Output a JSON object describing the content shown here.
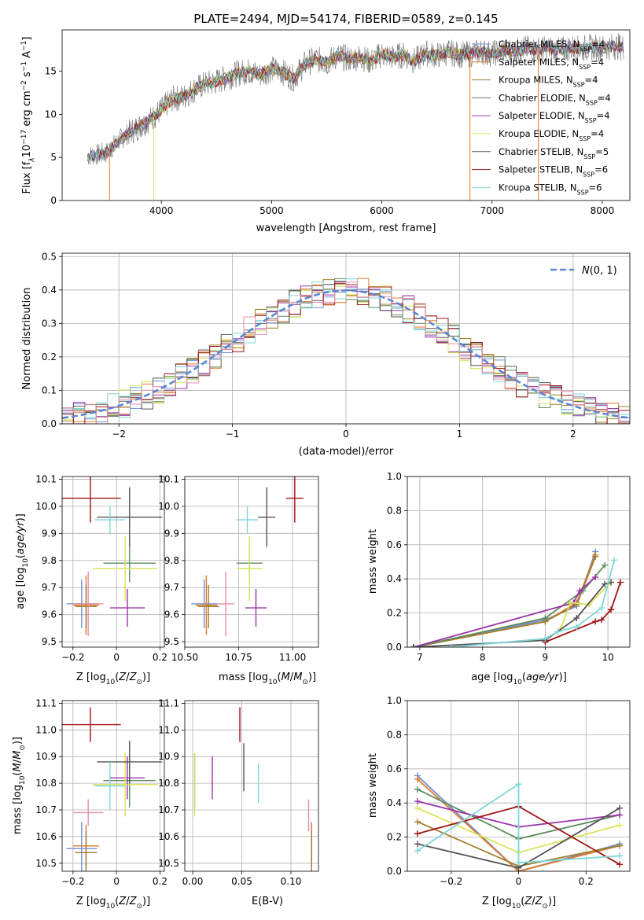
{
  "title": "PLATE=2494, MJD=54174, FIBERID=0589, z=0.145",
  "colors": [
    "#6f8fd4",
    "#e07a2a",
    "#a07f2c",
    "#5e8b5e",
    "#9b33a8",
    "#d9e35a",
    "#555555",
    "#a01414",
    "#7fd6d8",
    "#e58fa6"
  ],
  "models": [
    {
      "label": "Chabrier MILES, N",
      "sub": "SSP",
      "suffix": "=4",
      "color": "#6f8fd4"
    },
    {
      "label": "Salpeter MILES, N",
      "sub": "SSP",
      "suffix": "=4",
      "color": "#e07a2a"
    },
    {
      "label": "Kroupa MILES, N",
      "sub": "SSP",
      "suffix": "=4",
      "color": "#a07f2c"
    },
    {
      "label": "Chabrier ELODIE, N",
      "sub": "SSP",
      "suffix": "=4",
      "color": "#5e8b5e"
    },
    {
      "label": "Salpeter ELODIE, N",
      "sub": "SSP",
      "suffix": "=4",
      "color": "#9b33a8"
    },
    {
      "label": "Kroupa ELODIE, N",
      "sub": "SSP",
      "suffix": "=4",
      "color": "#d9e35a"
    },
    {
      "label": "Chabrier STELIB, N",
      "sub": "SSP",
      "suffix": "=5",
      "color": "#555555"
    },
    {
      "label": "Salpeter STELIB, N",
      "sub": "SSP",
      "suffix": "=6",
      "color": "#a01414"
    },
    {
      "label": "Kroupa STELIB, N",
      "sub": "SSP",
      "suffix": "=6",
      "color": "#7fd6d8"
    }
  ],
  "chart_data": [
    {
      "id": "spectrum",
      "type": "line",
      "xlabel": "wavelength [Angstrom, rest frame]",
      "ylabel": "Flux [f",
      "xlim": [
        3100,
        8250
      ],
      "ylim": [
        0,
        19.8
      ],
      "xticks": [
        4000,
        5000,
        6000,
        7000,
        8000
      ],
      "yticks": [
        0,
        5,
        10,
        15
      ],
      "x": [
        3330,
        3420,
        3500,
        3600,
        3700,
        3800,
        3900,
        4000,
        4100,
        4200,
        4300,
        4400,
        4500,
        4600,
        4700,
        4800,
        4900,
        5000,
        5100,
        5200,
        5300,
        5400,
        5500,
        5600,
        5700,
        5800,
        5900,
        6000,
        6100,
        6200,
        6300,
        6400,
        6500,
        6600,
        6700,
        6800,
        6900,
        7000,
        7100,
        7200,
        7300,
        7400,
        7500,
        7600,
        7700,
        7800,
        7900,
        8000,
        8100,
        8200
      ],
      "y": [
        5.2,
        5.3,
        5.5,
        6.8,
        7.8,
        8.6,
        9.4,
        10.5,
        11.8,
        12.0,
        12.9,
        13.5,
        13.8,
        14.3,
        14.8,
        15.0,
        14.6,
        15.3,
        14.9,
        14.2,
        15.8,
        16.4,
        16.0,
        16.8,
        16.4,
        16.7,
        16.1,
        17.0,
        16.6,
        16.9,
        16.2,
        17.1,
        16.8,
        17.2,
        16.9,
        17.0,
        17.3,
        17.0,
        17.4,
        17.3,
        17.6,
        17.5,
        17.6,
        17.4,
        17.7,
        17.6,
        17.8,
        17.7,
        17.9,
        17.8
      ]
    },
    {
      "id": "residuals",
      "type": "histogram",
      "xlabel": "(data-model)/error",
      "ylabel": "Normed distribution",
      "xlim": [
        -2.5,
        2.5
      ],
      "ylim": [
        0,
        0.51
      ],
      "xticks": [
        -2,
        -1,
        0,
        1,
        2
      ],
      "yticks": [
        0.0,
        0.1,
        0.2,
        0.3,
        0.4,
        0.5
      ],
      "bin_width": 0.1,
      "reference_label": "N(0,1)",
      "reference": "gaussian"
    },
    {
      "id": "age_vs_Z",
      "type": "errorbar",
      "xlabel": "Z [log",
      "ylabel": "age  [log",
      "xlim": [
        -0.25,
        0.22
      ],
      "ylim": [
        9.48,
        10.11
      ],
      "xticks": [
        -0.2,
        0.0,
        0.2
      ],
      "yticks": [
        9.5,
        9.6,
        9.7,
        9.8,
        9.9,
        10.0,
        10.1
      ],
      "points": [
        {
          "x": -0.16,
          "xerr": 0.07,
          "y": 9.64,
          "yerr": 0.09,
          "color": "#6f8fd4"
        },
        {
          "x": -0.14,
          "xerr": 0.06,
          "y": 9.635,
          "yerr": 0.11,
          "color": "#e07a2a"
        },
        {
          "x": -0.14,
          "xerr": 0.05,
          "y": 9.63,
          "yerr": 0.08,
          "color": "#a07f2c"
        },
        {
          "x": 0.06,
          "xerr": 0.12,
          "y": 9.79,
          "yerr": 0.07,
          "color": "#5e8b5e"
        },
        {
          "x": 0.05,
          "xerr": 0.08,
          "y": 9.625,
          "yerr": 0.07,
          "color": "#9b33a8"
        },
        {
          "x": 0.04,
          "xerr": 0.15,
          "y": 9.77,
          "yerr": 0.12,
          "color": "#d9e35a"
        },
        {
          "x": 0.06,
          "xerr": 0.15,
          "y": 9.96,
          "yerr": 0.11,
          "color": "#555555"
        },
        {
          "x": -0.12,
          "xerr": 0.14,
          "y": 10.03,
          "yerr": 0.09,
          "color": "#a01414"
        },
        {
          "x": -0.03,
          "xerr": 0.07,
          "y": 9.95,
          "yerr": 0.05,
          "color": "#7fd6d8"
        },
        {
          "x": -0.13,
          "xerr": 0.07,
          "y": 9.64,
          "yerr": 0.12,
          "color": "#e58fa6"
        }
      ]
    },
    {
      "id": "age_vs_mass",
      "type": "errorbar",
      "xlabel": "mass [log",
      "ylabel": "",
      "xlim": [
        10.5,
        11.12
      ],
      "ylim": [
        9.48,
        10.11
      ],
      "xticks": [
        10.5,
        10.75,
        11.0
      ],
      "xticklabels": [
        "10.50",
        "10.75",
        "11.00"
      ],
      "yticks": [
        9.5,
        9.6,
        9.7,
        9.8,
        9.9,
        10.0,
        10.1
      ],
      "points": [
        {
          "x": 10.59,
          "xerr": 0.06,
          "y": 9.64,
          "yerr": 0.09,
          "color": "#6f8fd4"
        },
        {
          "x": 10.6,
          "xerr": 0.05,
          "y": 9.635,
          "yerr": 0.11,
          "color": "#e07a2a"
        },
        {
          "x": 10.61,
          "xerr": 0.05,
          "y": 9.63,
          "yerr": 0.08,
          "color": "#a07f2c"
        },
        {
          "x": 10.8,
          "xerr": 0.06,
          "y": 9.79,
          "yerr": 0.07,
          "color": "#5e8b5e"
        },
        {
          "x": 10.83,
          "xerr": 0.05,
          "y": 9.625,
          "yerr": 0.07,
          "color": "#9b33a8"
        },
        {
          "x": 10.8,
          "xerr": 0.06,
          "y": 9.77,
          "yerr": 0.12,
          "color": "#d9e35a"
        },
        {
          "x": 10.88,
          "xerr": 0.04,
          "y": 9.96,
          "yerr": 0.11,
          "color": "#555555"
        },
        {
          "x": 11.01,
          "xerr": 0.04,
          "y": 10.03,
          "yerr": 0.09,
          "color": "#a01414"
        },
        {
          "x": 10.79,
          "xerr": 0.05,
          "y": 9.95,
          "yerr": 0.05,
          "color": "#7fd6d8"
        },
        {
          "x": 10.69,
          "xerr": 0.04,
          "y": 9.64,
          "yerr": 0.12,
          "color": "#e58fa6"
        }
      ]
    },
    {
      "id": "mass_vs_Z",
      "type": "errorbar",
      "xlabel": "Z [log",
      "ylabel": "mass [log",
      "xlim": [
        -0.25,
        0.22
      ],
      "ylim": [
        10.47,
        11.11
      ],
      "xticks": [
        -0.2,
        0.0,
        0.2
      ],
      "yticks": [
        10.5,
        10.6,
        10.7,
        10.8,
        10.9,
        11.0,
        11.1
      ],
      "points": [
        {
          "x": -0.16,
          "xerr": 0.07,
          "y": 10.555,
          "yerr": 0.1,
          "color": "#6f8fd4"
        },
        {
          "x": -0.14,
          "xerr": 0.06,
          "y": 10.565,
          "yerr": 0.08,
          "color": "#e07a2a"
        },
        {
          "x": -0.14,
          "xerr": 0.05,
          "y": 10.54,
          "yerr": 0.08,
          "color": "#a07f2c"
        },
        {
          "x": 0.06,
          "xerr": 0.12,
          "y": 10.81,
          "yerr": 0.1,
          "color": "#5e8b5e"
        },
        {
          "x": 0.05,
          "xerr": 0.08,
          "y": 10.82,
          "yerr": 0.08,
          "color": "#9b33a8"
        },
        {
          "x": 0.04,
          "xerr": 0.15,
          "y": 10.795,
          "yerr": 0.12,
          "color": "#d9e35a"
        },
        {
          "x": 0.06,
          "xerr": 0.15,
          "y": 10.88,
          "yerr": 0.08,
          "color": "#555555"
        },
        {
          "x": -0.12,
          "xerr": 0.14,
          "y": 11.02,
          "yerr": 0.065,
          "color": "#a01414"
        },
        {
          "x": -0.03,
          "xerr": 0.07,
          "y": 10.79,
          "yerr": 0.09,
          "color": "#7fd6d8"
        },
        {
          "x": -0.13,
          "xerr": 0.07,
          "y": 10.69,
          "yerr": 0.05,
          "color": "#e58fa6"
        }
      ]
    },
    {
      "id": "mass_vs_EBV",
      "type": "errorbar",
      "xlabel": "E(B-V)",
      "ylabel": "",
      "xlim": [
        -0.008,
        0.128
      ],
      "ylim": [
        10.47,
        11.11
      ],
      "xticks": [
        0.0,
        0.05,
        0.1
      ],
      "xticklabels": [
        "0.00",
        "0.05",
        "0.10"
      ],
      "yticks": [
        10.5,
        10.6,
        10.7,
        10.8,
        10.9,
        11.0,
        11.1
      ],
      "points": [
        {
          "x": 0.121,
          "y": 10.555,
          "yerr": 0.1,
          "color": "#6f8fd4"
        },
        {
          "x": 0.121,
          "y": 10.565,
          "yerr": 0.08,
          "color": "#e07a2a"
        },
        {
          "x": 0.121,
          "y": 10.54,
          "yerr": 0.08,
          "color": "#a07f2c"
        },
        {
          "x": 0.002,
          "y": 10.81,
          "yerr": 0.1,
          "color": "#5e8b5e"
        },
        {
          "x": 0.02,
          "y": 10.82,
          "yerr": 0.08,
          "color": "#9b33a8"
        },
        {
          "x": 0.002,
          "y": 10.795,
          "yerr": 0.12,
          "color": "#d9e35a"
        },
        {
          "x": 0.052,
          "y": 10.86,
          "yerr": 0.09,
          "color": "#555555"
        },
        {
          "x": 0.048,
          "y": 11.02,
          "yerr": 0.065,
          "color": "#a01414"
        },
        {
          "x": 0.067,
          "y": 10.8,
          "yerr": 0.075,
          "color": "#7fd6d8"
        },
        {
          "x": 0.118,
          "y": 10.68,
          "yerr": 0.06,
          "color": "#e58fa6"
        }
      ]
    },
    {
      "id": "weight_vs_age",
      "type": "line",
      "xlabel": "age  [log",
      "ylabel": "mass weight",
      "xlim": [
        6.8,
        10.35
      ],
      "ylim": [
        0,
        1.0
      ],
      "xticks": [
        7,
        8,
        9,
        10
      ],
      "yticks": [
        0.0,
        0.2,
        0.4,
        0.6,
        0.8,
        1.0
      ],
      "series": [
        {
          "color": "#6f8fd4",
          "x": [
            6.9,
            9.0,
            9.5,
            9.8
          ],
          "y": [
            0.0,
            0.16,
            0.24,
            0.56
          ]
        },
        {
          "color": "#e07a2a",
          "x": [
            6.9,
            9.0,
            9.5,
            9.8
          ],
          "y": [
            0.0,
            0.15,
            0.26,
            0.54
          ]
        },
        {
          "color": "#a07f2c",
          "x": [
            6.9,
            9.0,
            9.5,
            9.8
          ],
          "y": [
            0.0,
            0.15,
            0.25,
            0.53
          ]
        },
        {
          "color": "#5e8b5e",
          "x": [
            6.9,
            9.0,
            9.6,
            9.95
          ],
          "y": [
            0.0,
            0.17,
            0.33,
            0.48
          ]
        },
        {
          "color": "#9b33a8",
          "x": [
            6.9,
            9.45,
            9.55,
            9.8
          ],
          "y": [
            0.0,
            0.26,
            0.33,
            0.41
          ]
        },
        {
          "color": "#d9e35a",
          "x": [
            9.25,
            9.4,
            9.7,
            10.05
          ],
          "y": [
            0.11,
            0.26,
            0.25,
            0.38
          ]
        },
        {
          "color": "#555555",
          "x": [
            6.9,
            9.0,
            9.5,
            9.95,
            10.05
          ],
          "y": [
            0.0,
            0.04,
            0.17,
            0.37,
            0.38
          ]
        },
        {
          "color": "#a01414",
          "x": [
            9.0,
            9.8,
            9.9,
            10.05,
            10.2
          ],
          "y": [
            0.03,
            0.15,
            0.16,
            0.22,
            0.38
          ]
        },
        {
          "color": "#7fd6d8",
          "x": [
            7.5,
            9.0,
            9.2,
            9.5,
            9.9,
            10.1
          ],
          "y": [
            0.0,
            0.05,
            0.09,
            0.12,
            0.23,
            0.51
          ]
        }
      ]
    },
    {
      "id": "weight_vs_Z",
      "type": "line",
      "xlabel": "Z [log",
      "ylabel": "mass weight",
      "xlim": [
        -0.33,
        0.33
      ],
      "ylim": [
        0,
        1.0
      ],
      "xticks": [
        -0.2,
        0.0,
        0.2
      ],
      "yticks": [
        0.0,
        0.2,
        0.4,
        0.6,
        0.8,
        1.0
      ],
      "series": [
        {
          "color": "#6f8fd4",
          "x": [
            -0.3,
            0.0,
            0.3
          ],
          "y": [
            0.56,
            0.0,
            0.16
          ]
        },
        {
          "color": "#e07a2a",
          "x": [
            -0.3,
            0.0,
            0.3
          ],
          "y": [
            0.54,
            0.0,
            0.15
          ]
        },
        {
          "color": "#a07f2c",
          "x": [
            -0.3,
            0.0,
            0.3
          ],
          "y": [
            0.29,
            0.03,
            0.15
          ]
        },
        {
          "color": "#5e8b5e",
          "x": [
            -0.3,
            0.0,
            0.3
          ],
          "y": [
            0.48,
            0.19,
            0.33
          ]
        },
        {
          "color": "#9b33a8",
          "x": [
            -0.3,
            0.0,
            0.3
          ],
          "y": [
            0.41,
            0.26,
            0.33
          ]
        },
        {
          "color": "#d9e35a",
          "x": [
            -0.3,
            0.0,
            0.3
          ],
          "y": [
            0.37,
            0.11,
            0.27
          ]
        },
        {
          "color": "#555555",
          "x": [
            -0.3,
            0.0,
            0.3
          ],
          "y": [
            0.16,
            0.02,
            0.37
          ]
        },
        {
          "color": "#a01414",
          "x": [
            -0.3,
            0.0,
            0.3
          ],
          "y": [
            0.22,
            0.38,
            0.04
          ]
        },
        {
          "color": "#7fd6d8",
          "x": [
            -0.3,
            0.0,
            0.0,
            0.3
          ],
          "y": [
            0.12,
            0.51,
            0.05,
            0.09
          ]
        }
      ]
    }
  ]
}
